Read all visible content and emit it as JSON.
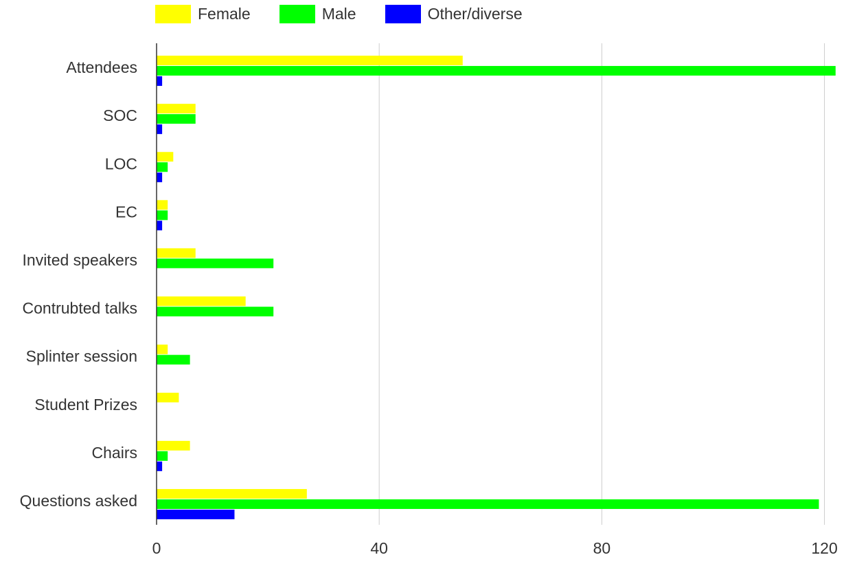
{
  "colors": {
    "female": "#ffff00",
    "male": "#00ff00",
    "other": "#0000ff",
    "grid": "#cccccc",
    "axis": "#333333"
  },
  "chart_data": {
    "type": "bar",
    "orientation": "horizontal",
    "categories": [
      "Attendees",
      "SOC",
      "LOC",
      "EC",
      "Invited speakers",
      "Contrubted talks",
      "Splinter session",
      "Student Prizes",
      "Chairs",
      "Questions asked"
    ],
    "series": [
      {
        "name": "Female",
        "color": "#ffff00",
        "values": [
          55,
          7,
          3,
          2,
          7,
          16,
          2,
          4,
          6,
          27
        ]
      },
      {
        "name": "Male",
        "color": "#00ff00",
        "values": [
          122,
          7,
          2,
          2,
          21,
          21,
          6,
          0,
          2,
          119
        ]
      },
      {
        "name": "Other/diverse",
        "color": "#0000ff",
        "values": [
          1,
          1,
          1,
          1,
          0,
          0,
          0,
          0,
          1,
          14
        ]
      }
    ],
    "xticks": [
      "0",
      "40",
      "80",
      "120"
    ],
    "xlim": [
      0,
      124
    ],
    "grid": true,
    "legend_position": "top-left",
    "title": "",
    "xlabel": "",
    "ylabel": ""
  }
}
